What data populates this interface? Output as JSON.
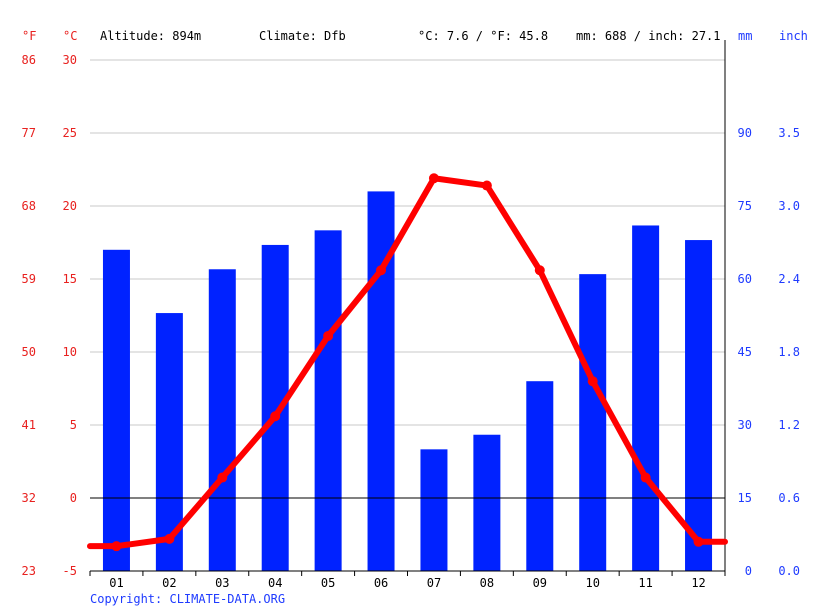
{
  "header": {
    "unit_f": "°F",
    "unit_c": "°C",
    "altitude": "Altitude: 894m",
    "climate": "Climate: Dfb",
    "temp_avg": "°C: 7.6 / °F: 45.8",
    "precip_total": "mm: 688 / inch: 27.1",
    "unit_mm": "mm",
    "unit_inch": "inch"
  },
  "copyright": "Copyright: CLIMATE-DATA.ORG",
  "colors": {
    "temp": "#ff0000",
    "precip": "#0022ff",
    "axis_temp": "#e8211f",
    "axis_precip": "#1f3bff"
  },
  "chart_data": {
    "type": "bar",
    "categories": [
      "01",
      "02",
      "03",
      "04",
      "05",
      "06",
      "07",
      "08",
      "09",
      "10",
      "11",
      "12"
    ],
    "series": [
      {
        "kind": "bar",
        "axis": "precip_mm",
        "values": [
          66,
          53,
          62,
          67,
          70,
          78,
          25,
          28,
          39,
          61,
          71,
          68
        ]
      },
      {
        "kind": "line",
        "axis": "temp_c",
        "values": [
          -3.3,
          -2.8,
          1.4,
          5.6,
          11.1,
          15.6,
          21.9,
          21.4,
          15.6,
          8.0,
          1.4,
          -3.0
        ]
      }
    ],
    "temp_c_axis": {
      "ylim": [
        -5,
        30
      ],
      "ticks": [
        "-5",
        "0",
        "5",
        "10",
        "15",
        "20",
        "25",
        "30"
      ]
    },
    "temp_f_axis": {
      "ticks": [
        "23",
        "32",
        "41",
        "50",
        "59",
        "68",
        "77",
        "86"
      ]
    },
    "precip_mm_axis": {
      "ylim": [
        0,
        105
      ],
      "ticks": [
        "0",
        "15",
        "30",
        "45",
        "60",
        "75",
        "90"
      ]
    },
    "precip_inch_axis": {
      "ticks": [
        "0.0",
        "0.6",
        "1.2",
        "1.8",
        "2.4",
        "3.0",
        "3.5"
      ]
    },
    "grid": true
  }
}
